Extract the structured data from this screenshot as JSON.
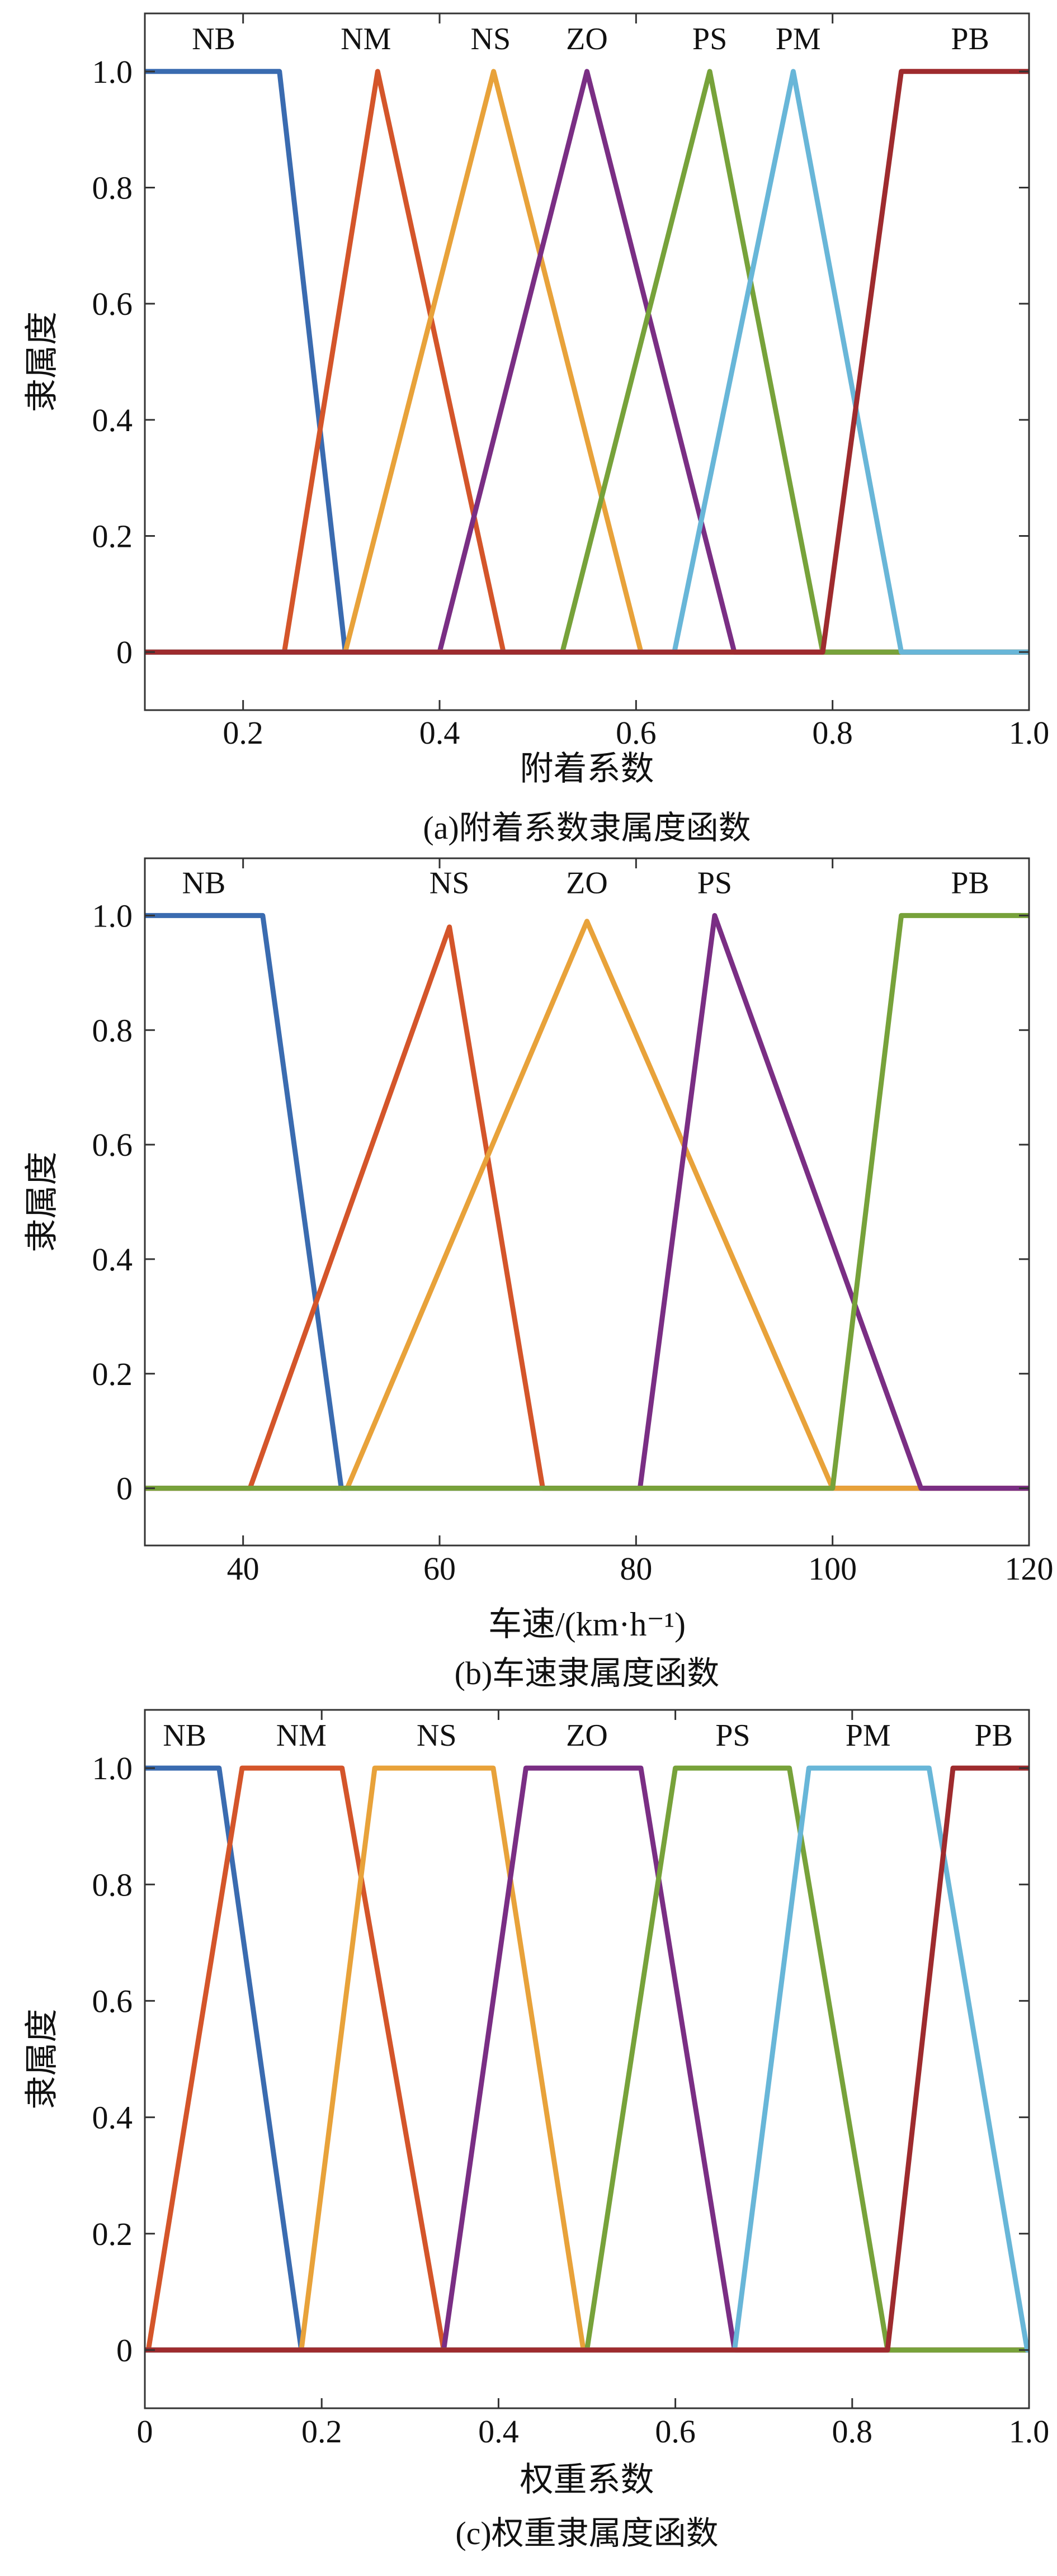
{
  "chart_data": [
    {
      "type": "line",
      "title": "",
      "caption": "(a)附着系数隶属度函数",
      "xlabel": "附着系数",
      "ylabel": "隶属度",
      "xlim": [
        0.1,
        1.0
      ],
      "ylim": [
        -0.1,
        1.1
      ],
      "xticks": [
        0.2,
        0.4,
        0.6,
        0.8,
        1.0
      ],
      "xtick_labels": [
        "0.2",
        "0.4",
        "0.6",
        "0.8",
        "1.0"
      ],
      "yticks": [
        0,
        0.2,
        0.4,
        0.6,
        0.8,
        1.0
      ],
      "ytick_labels": [
        "0",
        "0.2",
        "0.4",
        "0.6",
        "0.8",
        "1.0"
      ],
      "grid": false,
      "series": [
        {
          "name": "NB",
          "color": "#3A6BB0",
          "label_x": 0.17,
          "x": [
            0.1,
            0.237,
            0.304,
            1.0
          ],
          "y": [
            1,
            1,
            0,
            0
          ]
        },
        {
          "name": "NM",
          "color": "#D4552A",
          "label_x": 0.325,
          "x": [
            0.1,
            0.242,
            0.337,
            0.465,
            1.0
          ],
          "y": [
            0,
            0,
            1,
            0,
            0
          ]
        },
        {
          "name": "NS",
          "color": "#E8A23A",
          "label_x": 0.452,
          "x": [
            0.1,
            0.304,
            0.455,
            0.605,
            1.0
          ],
          "y": [
            0,
            0,
            1,
            0,
            0
          ]
        },
        {
          "name": "ZO",
          "color": "#7A2E84",
          "label_x": 0.55,
          "x": [
            0.1,
            0.4,
            0.55,
            0.7,
            1.0
          ],
          "y": [
            0,
            0,
            1,
            0,
            0
          ]
        },
        {
          "name": "PS",
          "color": "#77A23A",
          "label_x": 0.675,
          "x": [
            0.1,
            0.525,
            0.675,
            0.79,
            1.0
          ],
          "y": [
            0,
            0,
            1,
            0,
            0
          ]
        },
        {
          "name": "PM",
          "color": "#68B6D8",
          "label_x": 0.765,
          "x": [
            0.1,
            0.639,
            0.76,
            0.87,
            1.0
          ],
          "y": [
            0,
            0,
            1,
            0,
            0
          ]
        },
        {
          "name": "PB",
          "color": "#9E2B2E",
          "label_x": 0.94,
          "x": [
            0.1,
            0.79,
            0.87,
            1.0
          ],
          "y": [
            0,
            0,
            1,
            1
          ]
        }
      ]
    },
    {
      "type": "line",
      "title": "",
      "caption": "(b)车速隶属度函数",
      "xlabel": "车速/(km·h⁻¹)",
      "ylabel": "隶属度",
      "xlim": [
        30,
        120
      ],
      "ylim": [
        -0.1,
        1.1
      ],
      "xticks": [
        40,
        60,
        80,
        100,
        120
      ],
      "xtick_labels": [
        "40",
        "60",
        "80",
        "100",
        "120"
      ],
      "yticks": [
        0,
        0.2,
        0.4,
        0.6,
        0.8,
        1.0
      ],
      "ytick_labels": [
        "0",
        "0.2",
        "0.4",
        "0.6",
        "0.8",
        "1.0"
      ],
      "grid": false,
      "series": [
        {
          "name": "NB",
          "color": "#3A6BB0",
          "label_x": 36,
          "x": [
            30,
            42,
            50,
            120
          ],
          "y": [
            1,
            1,
            0,
            0
          ]
        },
        {
          "name": "NS",
          "color": "#D4552A",
          "label_x": 61,
          "x": [
            30,
            40.7,
            61,
            70.5,
            120
          ],
          "y": [
            0,
            0,
            0.98,
            0,
            0
          ]
        },
        {
          "name": "ZO",
          "color": "#E8A23A",
          "label_x": 75,
          "x": [
            30,
            50.6,
            75,
            100,
            120
          ],
          "y": [
            0,
            0,
            0.99,
            0,
            0
          ]
        },
        {
          "name": "PS",
          "color": "#7A2E84",
          "label_x": 88,
          "x": [
            30,
            80.4,
            88,
            109,
            120
          ],
          "y": [
            0,
            0,
            1,
            0,
            0
          ]
        },
        {
          "name": "PB",
          "color": "#77A23A",
          "label_x": 114,
          "x": [
            30,
            100,
            107,
            120
          ],
          "y": [
            0,
            0,
            1,
            1
          ]
        }
      ]
    },
    {
      "type": "line",
      "title": "",
      "caption": "(c)权重隶属度函数",
      "xlabel": "权重系数",
      "ylabel": "隶属度",
      "xlim": [
        0,
        1.0
      ],
      "ylim": [
        -0.1,
        1.1
      ],
      "xticks": [
        0,
        0.2,
        0.4,
        0.6,
        0.8,
        1.0
      ],
      "xtick_labels": [
        "0",
        "0.2",
        "0.4",
        "0.6",
        "0.8",
        "1.0"
      ],
      "yticks": [
        0,
        0.2,
        0.4,
        0.6,
        0.8,
        1.0
      ],
      "ytick_labels": [
        "0",
        "0.2",
        "0.4",
        "0.6",
        "0.8",
        "1.0"
      ],
      "grid": false,
      "series": [
        {
          "name": "NB",
          "color": "#3A6BB0",
          "label_x": 0.045,
          "x": [
            0,
            0.084,
            0.177,
            1.0
          ],
          "y": [
            1,
            1,
            0,
            0
          ]
        },
        {
          "name": "NM",
          "color": "#D4552A",
          "label_x": 0.177,
          "x": [
            0,
            0.004,
            0.11,
            0.223,
            0.338,
            1.0
          ],
          "y": [
            0,
            0,
            1,
            1,
            0,
            0
          ]
        },
        {
          "name": "NS",
          "color": "#E8A23A",
          "label_x": 0.33,
          "x": [
            0,
            0.177,
            0.26,
            0.394,
            0.496,
            1.0
          ],
          "y": [
            0,
            0,
            1,
            1,
            0,
            0
          ]
        },
        {
          "name": "ZO",
          "color": "#7A2E84",
          "label_x": 0.5,
          "x": [
            0,
            0.338,
            0.431,
            0.561,
            0.667,
            1.0
          ],
          "y": [
            0,
            0,
            1,
            1,
            0,
            0
          ]
        },
        {
          "name": "PS",
          "color": "#77A23A",
          "label_x": 0.665,
          "x": [
            0,
            0.5,
            0.6,
            0.729,
            0.84,
            1.0
          ],
          "y": [
            0,
            0,
            1,
            1,
            0,
            0
          ]
        },
        {
          "name": "PM",
          "color": "#68B6D8",
          "label_x": 0.818,
          "x": [
            0,
            0.667,
            0.751,
            0.887,
            0.998,
            1.0
          ],
          "y": [
            0,
            0,
            1,
            1,
            0,
            0
          ]
        },
        {
          "name": "PB",
          "color": "#9E2B2E",
          "label_x": 0.96,
          "x": [
            0,
            0.84,
            0.914,
            1.0
          ],
          "y": [
            0,
            0,
            1,
            1
          ]
        }
      ]
    }
  ]
}
